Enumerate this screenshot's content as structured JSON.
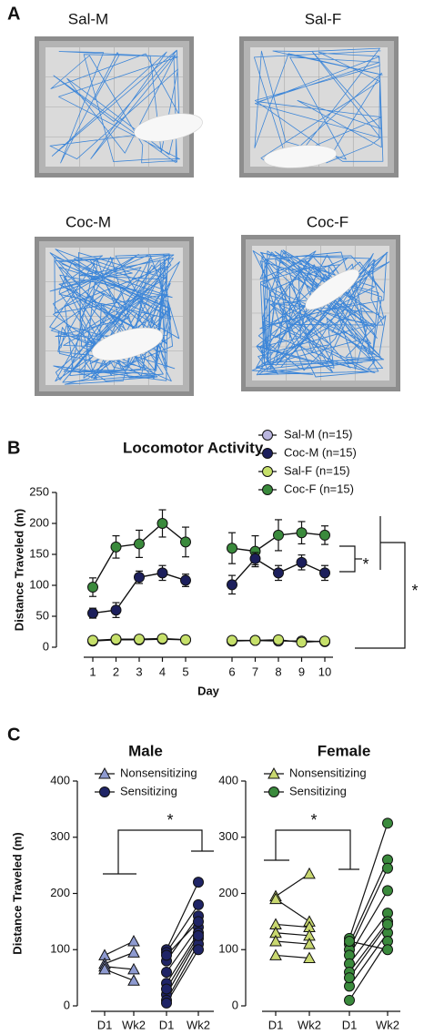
{
  "panel_labels": [
    "A",
    "B",
    "C"
  ],
  "photo_labels": [
    "Sal-M",
    "Sal-F",
    "Coc-M",
    "Coc-F"
  ],
  "chart_data": [
    {
      "type": "line",
      "title": "Locomotor Activity",
      "x_label": "Day",
      "y_label": "Distance Traveled (m)",
      "categories": [
        "1",
        "2",
        "3",
        "4",
        "5",
        null,
        "6",
        "7",
        "8",
        "9",
        "10"
      ],
      "ylim": [
        0,
        250
      ],
      "yticks": [
        0,
        50,
        100,
        150,
        200,
        250
      ],
      "series": [
        {
          "name": "Sal-M (n=15)",
          "color": "#b9b5de",
          "values": [
            10,
            12,
            12,
            13,
            12,
            null,
            10,
            11,
            10,
            10,
            9
          ],
          "errors": [
            3,
            3,
            3,
            3,
            3,
            null,
            3,
            3,
            3,
            3,
            3
          ]
        },
        {
          "name": "Coc-M (n=15)",
          "color": "#1c1f5c",
          "values": [
            55,
            60,
            113,
            120,
            108,
            null,
            101,
            143,
            120,
            137,
            120
          ],
          "errors": [
            8,
            12,
            10,
            12,
            10,
            null,
            15,
            10,
            12,
            12,
            12
          ]
        },
        {
          "name": "Sal-F (n=15)",
          "color": "#c6e06a",
          "values": [
            11,
            13,
            13,
            14,
            12,
            null,
            11,
            11,
            12,
            8,
            10
          ],
          "errors": [
            3,
            3,
            3,
            3,
            3,
            null,
            3,
            3,
            3,
            3,
            3
          ]
        },
        {
          "name": "Coc-F (n=15)",
          "color": "#3a8a3c",
          "values": [
            97,
            162,
            167,
            200,
            170,
            null,
            160,
            155,
            181,
            185,
            181
          ],
          "errors": [
            15,
            18,
            22,
            22,
            24,
            null,
            25,
            25,
            25,
            18,
            15
          ]
        }
      ],
      "annotations": [
        "*",
        "*"
      ]
    },
    {
      "type": "paired",
      "title": "Male",
      "y_label": "Distance Traveled (m)",
      "categories": [
        "D1",
        "Wk2",
        "D1",
        "Wk2"
      ],
      "ylim": [
        0,
        400
      ],
      "yticks": [
        0,
        100,
        200,
        300,
        400
      ],
      "series": [
        {
          "name": "Nonsensitizing",
          "color": "#8e9ad0",
          "marker": "triangle",
          "d1": [
            90,
            75,
            70,
            65
          ],
          "wk2": [
            115,
            95,
            65,
            45
          ]
        },
        {
          "name": "Sensitizing",
          "color": "#1f2466",
          "marker": "circle",
          "d1": [
            100,
            95,
            80,
            60,
            40,
            20,
            10,
            5,
            90,
            30
          ],
          "wk2": [
            220,
            180,
            160,
            140,
            130,
            120,
            110,
            100,
            150,
            125
          ]
        }
      ],
      "annotations": [
        "*"
      ]
    },
    {
      "type": "paired",
      "title": "Female",
      "categories": [
        "D1",
        "Wk2",
        "D1",
        "Wk2"
      ],
      "ylim": [
        0,
        400
      ],
      "yticks": [
        0,
        100,
        200,
        300,
        400
      ],
      "series": [
        {
          "name": "Nonsensitizing",
          "color": "#c9d870",
          "marker": "triangle",
          "d1": [
            195,
            190,
            145,
            130,
            115,
            90
          ],
          "wk2": [
            235,
            150,
            140,
            125,
            110,
            85
          ]
        },
        {
          "name": "Sensitizing",
          "color": "#3a8a3c",
          "marker": "circle",
          "d1": [
            120,
            110,
            100,
            90,
            75,
            60,
            35,
            10,
            115,
            50
          ],
          "wk2": [
            325,
            260,
            245,
            205,
            165,
            150,
            130,
            115,
            100,
            145
          ]
        }
      ],
      "annotations": [
        "*"
      ]
    }
  ]
}
